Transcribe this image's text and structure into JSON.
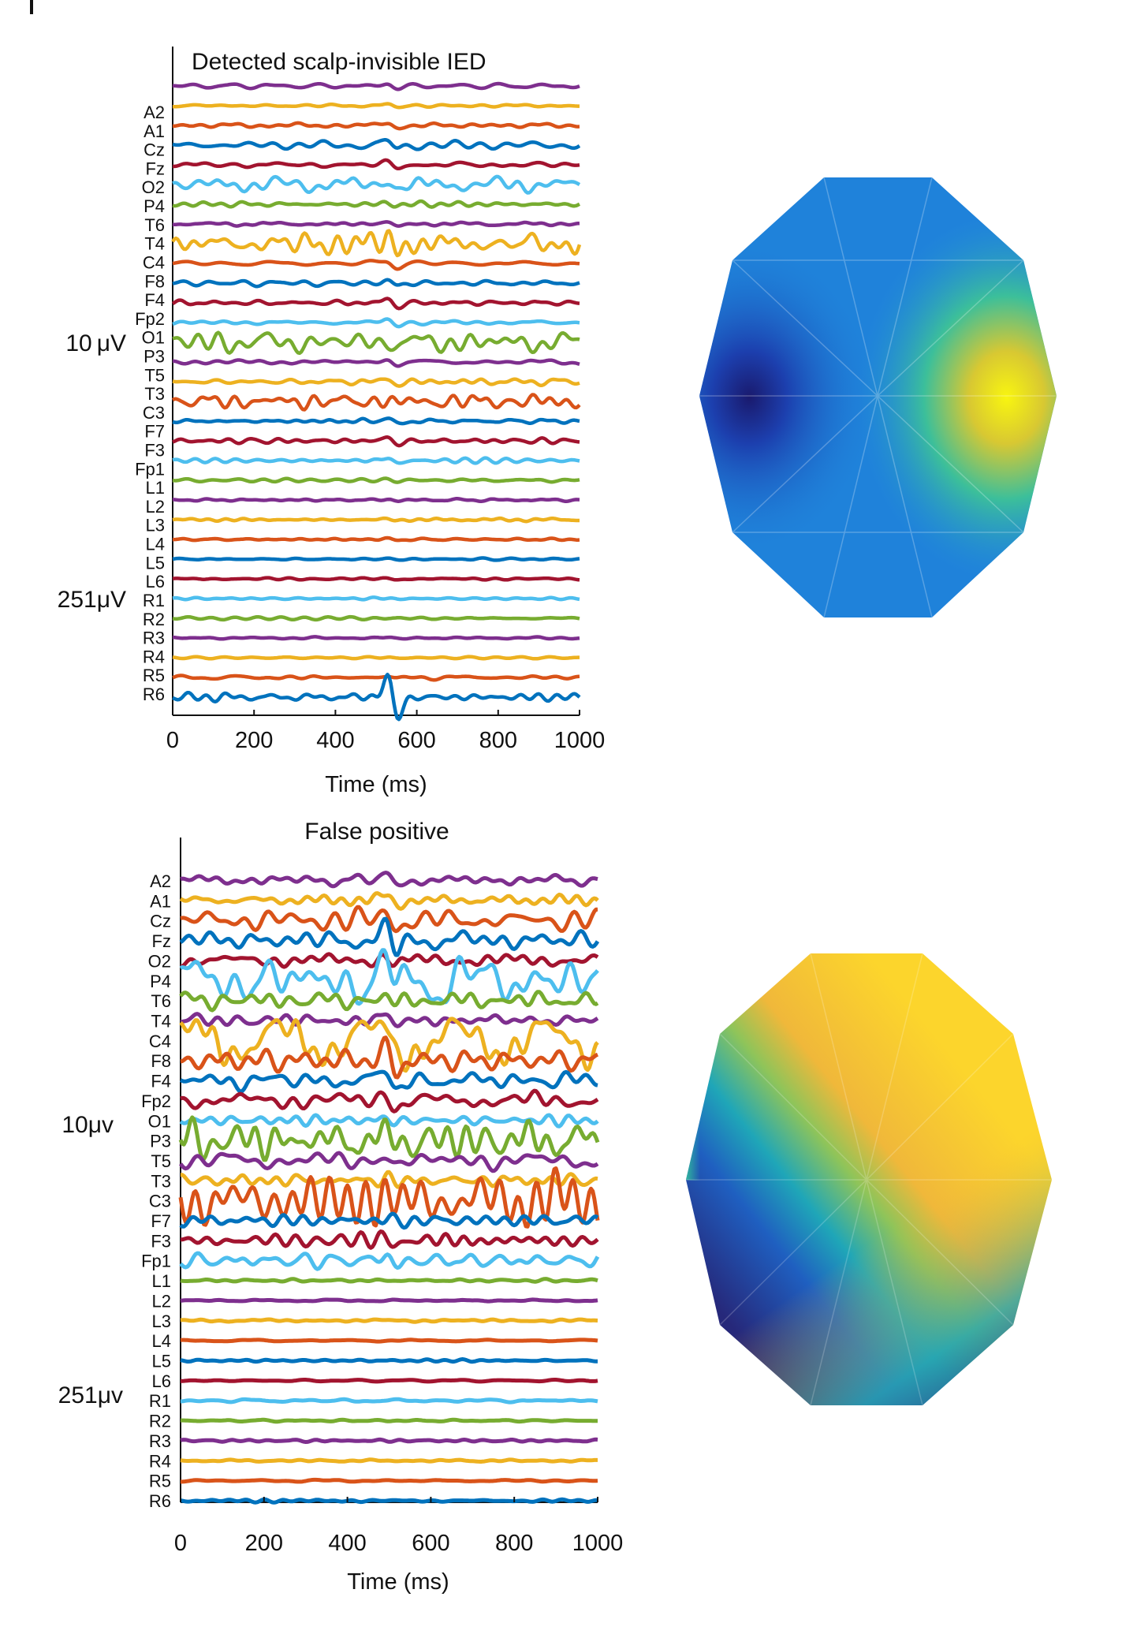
{
  "chart_data": [
    {
      "type": "line",
      "subtype": "stacked-eeg-traces",
      "title": "Detected scalp-invisible IED",
      "xlabel": "Time (ms)",
      "xlim": [
        0,
        1000
      ],
      "xticks": [
        "0",
        "200",
        "400",
        "600",
        "800",
        "1000"
      ],
      "channels": [
        "A2",
        "A1",
        "Cz",
        "Fz",
        "O2",
        "P4",
        "T6",
        "T4",
        "C4",
        "F8",
        "F4",
        "Fp2",
        "O1",
        "P3",
        "T5",
        "T3",
        "C3",
        "F7",
        "F3",
        "Fp1",
        "L1",
        "L2",
        "L3",
        "L4",
        "L5",
        "L6",
        "R1",
        "R2",
        "R3",
        "R4",
        "R5",
        "R6"
      ],
      "scale_labels": {
        "scalp": "10 μV",
        "intracranial": "251μV"
      },
      "event_time_ms": 540,
      "noise_level": [
        1,
        0.6,
        1.2,
        1.6,
        1,
        3,
        1,
        1,
        4,
        1,
        1.1,
        1,
        1,
        3.5,
        1,
        1,
        3,
        1,
        1,
        1,
        0.8,
        0.5,
        0.5,
        0.5,
        0.5,
        0.5,
        0.5,
        0.6,
        0.5,
        0.5,
        0.6,
        1.5
      ],
      "event_amplitude": [
        3,
        3,
        4,
        5,
        3,
        8,
        1,
        3,
        10,
        4,
        4,
        5,
        4,
        5,
        4,
        4,
        3,
        5,
        5,
        4,
        1,
        1,
        1,
        1,
        1,
        1,
        1,
        1,
        1,
        1,
        2,
        26
      ],
      "topomap": {
        "colormap": "parula",
        "low_region": "left",
        "high_region": "right"
      }
    },
    {
      "type": "line",
      "subtype": "stacked-eeg-traces",
      "title": "False positive",
      "xlabel": "Time (ms)",
      "xlim": [
        0,
        1000
      ],
      "xticks": [
        "0",
        "200",
        "400",
        "600",
        "800",
        "1000"
      ],
      "channels": [
        "A2",
        "A1",
        "Cz",
        "Fz",
        "O2",
        "P4",
        "T6",
        "T4",
        "C4",
        "F8",
        "F4",
        "Fp2",
        "O1",
        "P3",
        "T5",
        "T3",
        "C3",
        "F7",
        "F3",
        "Fp1",
        "L1",
        "L2",
        "L3",
        "L4",
        "L5",
        "L6",
        "R1",
        "R2",
        "R3",
        "R4",
        "R5",
        "R6"
      ],
      "scale_labels": {
        "scalp": "10μv",
        "intracranial": "251μv"
      },
      "event_time_ms": 505,
      "noise_level": [
        2,
        2,
        4,
        4,
        3,
        9,
        4,
        3,
        9,
        4,
        4,
        4,
        2,
        10,
        3,
        3,
        11,
        3,
        3,
        3,
        0.5,
        0.5,
        0.5,
        0.5,
        0.5,
        0.5,
        0.5,
        0.5,
        0.5,
        0.5,
        0.5,
        0.5
      ],
      "event_amplitude": [
        9,
        9,
        11,
        15,
        5,
        12,
        3,
        9,
        12,
        15,
        15,
        15,
        3,
        4,
        3,
        3,
        5,
        3,
        6,
        9,
        0,
        0,
        0,
        0,
        0,
        0,
        0,
        0,
        0,
        0,
        0,
        0
      ],
      "topomap": {
        "colormap": "parula",
        "low_region": "lower-left",
        "high_region": "upper-right"
      }
    }
  ],
  "colors": [
    "#7e2f8e",
    "#edb120",
    "#d95319",
    "#0072bd",
    "#a2142f",
    "#4dbeee",
    "#77ac30"
  ]
}
